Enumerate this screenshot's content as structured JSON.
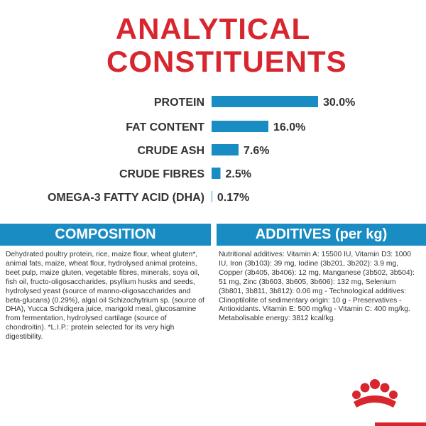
{
  "chart_data": {
    "type": "bar",
    "orientation": "horizontal",
    "title": "ANALYTICAL CONSTITUENTS",
    "categories": [
      "PROTEIN",
      "FAT CONTENT",
      "CRUDE ASH",
      "CRUDE FIBRES",
      "OMEGA-3 FATTY ACID (DHA)"
    ],
    "values": [
      30.0,
      16.0,
      7.6,
      2.5,
      0.17
    ],
    "value_labels": [
      "30.0%",
      "16.0%",
      "7.6%",
      "2.5%",
      "0.17%"
    ],
    "color": "#1a8cc4"
  },
  "composition": {
    "title": "COMPOSITION",
    "text": "Dehydrated poultry protein, rice, maize flour, wheat gluten*, animal fats, maize, wheat flour, hydrolysed animal proteins, beet pulp, maize gluten, vegetable fibres, minerals, soya oil, fish oil, fructo-oligosaccharides, psyllium husks and seeds, hydrolysed yeast (source of manno-oligosaccharides and beta-glucans) (0.29%), algal oil Schizochytrium sp. (source of DHA), Yucca Schidigera juice, marigold meal, glucosamine from fermentation, hydrolysed cartilage (source of chondroitin). *L.I.P.: protein selected for its very high digestibility."
  },
  "additives": {
    "title": "ADDITIVES (per kg)",
    "text": "Nutritional additives: Vitamin A: 15500 IU, Vitamin D3: 1000 IU, Iron (3b103): 39 mg, Iodine (3b201, 3b202): 3.9 mg, Copper (3b405, 3b406): 12 mg, Manganese (3b502, 3b504): 51 mg, Zinc (3b603, 3b605, 3b606): 132 mg, Selenium (3b801, 3b811, 3b812): 0.06 mg - Technological additives: Clinoptilolite of sedimentary origin: 10 g - Preservatives - Antioxidants. Vitamin E: 500 mg/kg - Vitamin C: 400 mg/kg. Metabolisable energy: 3812 kcal/kg."
  }
}
